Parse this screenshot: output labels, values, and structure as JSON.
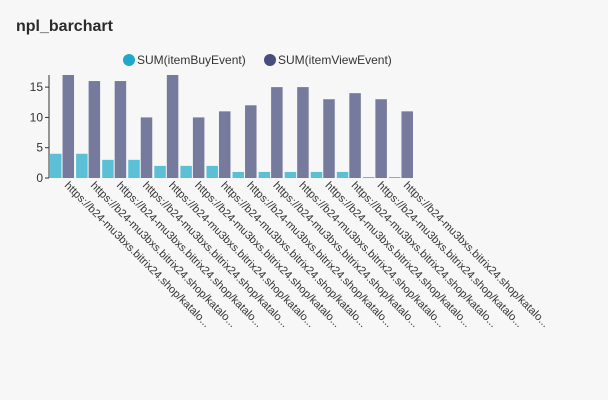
{
  "panel": {
    "title": "npl_barchart"
  },
  "chart_data": {
    "type": "bar",
    "categories": [
      "https://b24-mu3bxs.bitrix24.shop/katalo...",
      "https://b24-mu3bxs.bitrix24.shop/katalo...",
      "https://b24-mu3bxs.bitrix24.shop/katalo...",
      "https://b24-mu3bxs.bitrix24.shop/katalo...",
      "https://b24-mu3bxs.bitrix24.shop/katalo...",
      "https://b24-mu3bxs.bitrix24.shop/katalo...",
      "https://b24-mu3bxs.bitrix24.shop/katalo...",
      "https://b24-mu3bxs.bitrix24.shop/katalo...",
      "https://b24-mu3bxs.bitrix24.shop/katalo...",
      "https://b24-mu3bxs.bitrix24.shop/katalo...",
      "https://b24-mu3bxs.bitrix24.shop/katalo...",
      "https://b24-mu3bxs.bitrix24.shop/katalo...",
      "https://b24-mu3bxs.bitrix24.shop/katalo...",
      "https://b24-mu3bxs.bitrix24.shop/katalo..."
    ],
    "series": [
      {
        "name": "SUM(itemBuyEvent)",
        "color": "#5bc0d5",
        "legend_color": "#1fa8c9",
        "values": [
          4,
          4,
          3,
          3,
          2,
          2,
          2,
          1,
          1,
          1,
          1,
          1,
          0,
          0
        ]
      },
      {
        "name": "SUM(itemViewEvent)",
        "color": "#767a9c",
        "legend_color": "#454e7c",
        "values": [
          17,
          16,
          16,
          10,
          17,
          10,
          11,
          12,
          15,
          15,
          13,
          14,
          13,
          11
        ]
      }
    ],
    "y_ticks": [
      0,
      5,
      10,
      15
    ],
    "ylim": [
      0,
      17
    ],
    "xlabel": "",
    "ylabel": "",
    "legend_position": "top",
    "grid": false
  }
}
